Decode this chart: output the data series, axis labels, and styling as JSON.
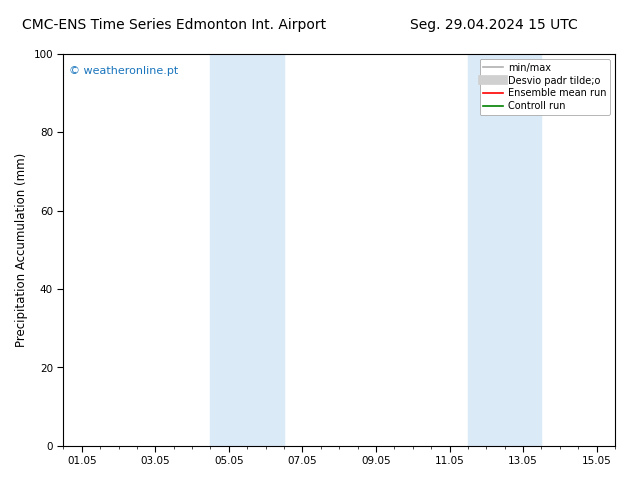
{
  "title_left": "CMC-ENS Time Series Edmonton Int. Airport",
  "title_right": "Seg. 29.04.2024 15 UTC",
  "ylabel": "Precipitation Accumulation (mm)",
  "watermark": "© weatheronline.pt",
  "ylim": [
    0,
    100
  ],
  "yticks": [
    0,
    20,
    40,
    60,
    80,
    100
  ],
  "xtick_labels": [
    "01.05",
    "03.05",
    "05.05",
    "07.05",
    "09.05",
    "11.05",
    "13.05",
    "15.05"
  ],
  "xtick_positions": [
    0,
    2,
    4,
    6,
    8,
    10,
    12,
    14
  ],
  "xlim": [
    -0.5,
    14.5
  ],
  "shaded_regions": [
    {
      "xmin": 3.5,
      "xmax": 5.5,
      "color": "#daeaf7"
    },
    {
      "xmin": 10.5,
      "xmax": 12.5,
      "color": "#daeaf7"
    }
  ],
  "legend_entries": [
    {
      "label": "min/max",
      "color": "#b0b0b0",
      "lw": 1.2,
      "type": "line"
    },
    {
      "label": "Desvio padr tilde;o",
      "color": "#d0d0d0",
      "lw": 7,
      "type": "line"
    },
    {
      "label": "Ensemble mean run",
      "color": "#ff0000",
      "lw": 1.2,
      "type": "line"
    },
    {
      "label": "Controll run",
      "color": "#008000",
      "lw": 1.2,
      "type": "line"
    }
  ],
  "background_color": "#ffffff",
  "watermark_color": "#1a75bc",
  "title_fontsize": 10,
  "tick_fontsize": 7.5,
  "ylabel_fontsize": 8.5,
  "legend_fontsize": 7,
  "watermark_fontsize": 8
}
